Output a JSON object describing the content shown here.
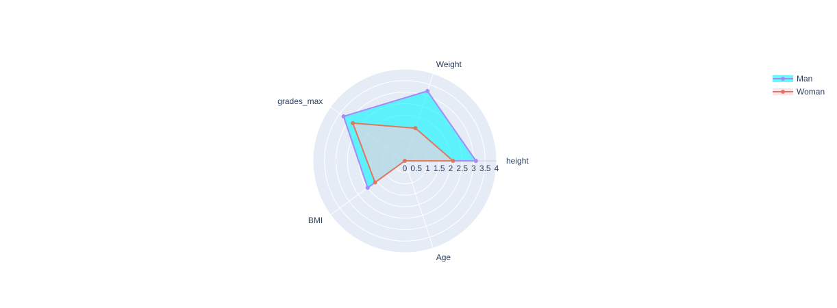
{
  "chart_data": {
    "type": "radar",
    "title": "",
    "axes": [
      "height",
      "Weight",
      "grades_max",
      "BMI",
      "Age"
    ],
    "radial_ticks": [
      "0",
      "0.5",
      "1",
      "1.5",
      "2",
      "2.5",
      "3",
      "3.5",
      "4"
    ],
    "rlim": [
      0,
      4
    ],
    "grid": true,
    "legend_position": "top-right",
    "series": [
      {
        "name": "Man",
        "values": [
          3.1,
          3.2,
          3.3,
          2.0,
          0
        ],
        "line_color": "#a58bfa",
        "fill_color": "#00f5ff",
        "fill_opacity": 0.6
      },
      {
        "name": "Woman",
        "values": [
          2.1,
          1.5,
          2.8,
          1.6,
          0
        ],
        "line_color": "#e0785f",
        "fill_color": "#fbd0dc",
        "fill_opacity": 0.6
      }
    ],
    "colors": {
      "polar_bg": "#e5ecf6",
      "grid": "#ffffff",
      "text": "#2a3f5f"
    }
  }
}
